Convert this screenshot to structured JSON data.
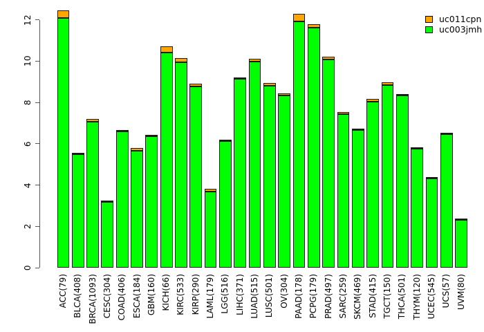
{
  "chart_data": {
    "type": "bar",
    "stacked": true,
    "title": "",
    "xlabel": "",
    "ylabel": "",
    "ylim": [
      0,
      12
    ],
    "yticks": [
      0,
      2,
      4,
      6,
      8,
      10,
      12
    ],
    "grid": false,
    "legend_position": "top-right",
    "categories": [
      "ACC(79)",
      "BLCA(408)",
      "BRCA(1093)",
      "CESC(304)",
      "COAD(406)",
      "ESCA(184)",
      "GBM(160)",
      "KICH(66)",
      "KIRC(533)",
      "KIRP(290)",
      "LAML(179)",
      "LGG(516)",
      "LIHC(371)",
      "LUAD(515)",
      "LUSC(501)",
      "OV(304)",
      "PAAD(178)",
      "PCPG(179)",
      "PRAD(497)",
      "SARC(259)",
      "SKCM(469)",
      "STAD(415)",
      "TGCT(150)",
      "THCA(501)",
      "THYM(120)",
      "UCEC(545)",
      "UCS(57)",
      "UVM(80)"
    ],
    "series": [
      {
        "name": "uc011cpn",
        "color": "#FFA500",
        "stack_position": "top",
        "values": [
          0.34,
          0.03,
          0.15,
          0.03,
          0.03,
          0.15,
          0.03,
          0.3,
          0.2,
          0.12,
          0.12,
          0.03,
          0.03,
          0.13,
          0.15,
          0.1,
          0.39,
          0.18,
          0.12,
          0.13,
          0.05,
          0.14,
          0.15,
          0.07,
          0.03,
          0.03,
          0.03,
          0.02
        ]
      },
      {
        "name": "uc003jmh",
        "color": "#00FF00",
        "stack_position": "bottom",
        "values": [
          12.1,
          5.52,
          7.05,
          3.22,
          6.62,
          5.65,
          6.39,
          10.4,
          9.95,
          8.78,
          3.7,
          6.17,
          9.17,
          9.97,
          8.8,
          8.35,
          11.91,
          11.62,
          10.08,
          7.42,
          6.67,
          8.04,
          8.83,
          8.33,
          5.8,
          4.35,
          6.5,
          2.35
        ]
      }
    ]
  },
  "legend": {
    "items": [
      {
        "label": "uc011cpn",
        "color": "#FFA500"
      },
      {
        "label": "uc003jmh",
        "color": "#00FF00"
      }
    ]
  }
}
